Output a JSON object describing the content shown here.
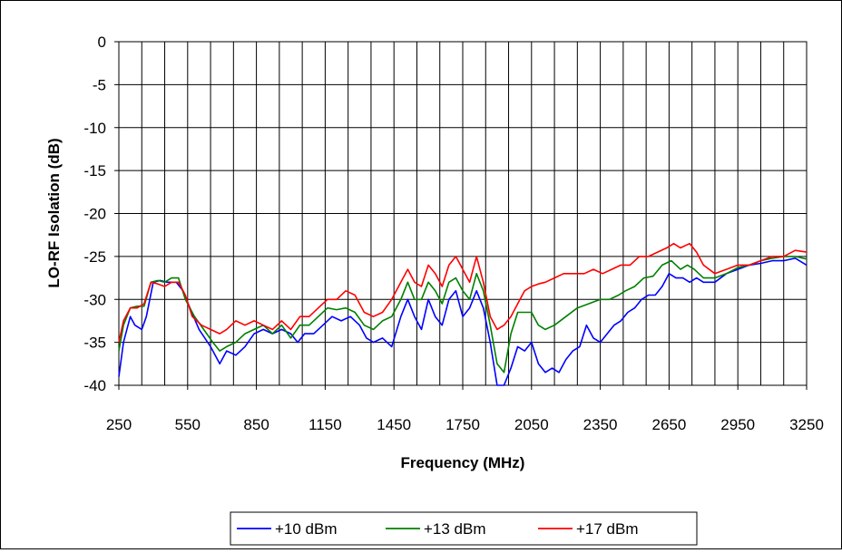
{
  "chart_data": {
    "type": "line",
    "title": "",
    "xlabel": "Frequency (MHz)",
    "ylabel": "LO-RF Isolation (dB)",
    "xlim": [
      250,
      3250
    ],
    "ylim": [
      -40,
      0
    ],
    "x_ticks": [
      "250",
      "550",
      "850",
      "1150",
      "1450",
      "1750",
      "2050",
      "2350",
      "2650",
      "2950",
      "3250"
    ],
    "y_ticks": [
      "0",
      "-5",
      "-10",
      "-15",
      "-20",
      "-25",
      "-30",
      "-35",
      "-40"
    ],
    "grid": true,
    "legend_position": "bottom",
    "series": [
      {
        "name": "+10 dBm",
        "color": "#0000ff",
        "points": [
          [
            250,
            -39
          ],
          [
            270,
            -35
          ],
          [
            300,
            -32
          ],
          [
            320,
            -33
          ],
          [
            350,
            -33.5
          ],
          [
            370,
            -32
          ],
          [
            400,
            -28
          ],
          [
            430,
            -27.8
          ],
          [
            460,
            -28
          ],
          [
            500,
            -28
          ],
          [
            530,
            -29
          ],
          [
            560,
            -31
          ],
          [
            600,
            -33.5
          ],
          [
            650,
            -35.5
          ],
          [
            690,
            -37.5
          ],
          [
            720,
            -36
          ],
          [
            760,
            -36.5
          ],
          [
            800,
            -35.5
          ],
          [
            840,
            -34
          ],
          [
            880,
            -33.5
          ],
          [
            920,
            -34
          ],
          [
            960,
            -33.5
          ],
          [
            1000,
            -34
          ],
          [
            1030,
            -35
          ],
          [
            1060,
            -34
          ],
          [
            1100,
            -34
          ],
          [
            1140,
            -33
          ],
          [
            1180,
            -32
          ],
          [
            1220,
            -32.5
          ],
          [
            1260,
            -32
          ],
          [
            1300,
            -33
          ],
          [
            1330,
            -34.5
          ],
          [
            1360,
            -35
          ],
          [
            1400,
            -34.5
          ],
          [
            1440,
            -35.5
          ],
          [
            1480,
            -32
          ],
          [
            1510,
            -30
          ],
          [
            1540,
            -32
          ],
          [
            1570,
            -33.5
          ],
          [
            1600,
            -30
          ],
          [
            1630,
            -32
          ],
          [
            1660,
            -33
          ],
          [
            1690,
            -30
          ],
          [
            1720,
            -29
          ],
          [
            1750,
            -32
          ],
          [
            1780,
            -31
          ],
          [
            1810,
            -29
          ],
          [
            1840,
            -31
          ],
          [
            1870,
            -35
          ],
          [
            1900,
            -40
          ],
          [
            1930,
            -40.5
          ],
          [
            1960,
            -38
          ],
          [
            1990,
            -35.5
          ],
          [
            2020,
            -36
          ],
          [
            2050,
            -35
          ],
          [
            2080,
            -37.5
          ],
          [
            2110,
            -38.5
          ],
          [
            2140,
            -38
          ],
          [
            2170,
            -38.5
          ],
          [
            2200,
            -37
          ],
          [
            2230,
            -36
          ],
          [
            2260,
            -35.5
          ],
          [
            2290,
            -33
          ],
          [
            2320,
            -34.5
          ],
          [
            2350,
            -35
          ],
          [
            2380,
            -34
          ],
          [
            2410,
            -33
          ],
          [
            2440,
            -32.5
          ],
          [
            2470,
            -31.5
          ],
          [
            2500,
            -31
          ],
          [
            2530,
            -30
          ],
          [
            2560,
            -29.5
          ],
          [
            2590,
            -29.5
          ],
          [
            2620,
            -28.5
          ],
          [
            2650,
            -27
          ],
          [
            2680,
            -27.5
          ],
          [
            2710,
            -27.5
          ],
          [
            2740,
            -28
          ],
          [
            2770,
            -27.5
          ],
          [
            2800,
            -28
          ],
          [
            2850,
            -28
          ],
          [
            2900,
            -27
          ],
          [
            2950,
            -26.5
          ],
          [
            3000,
            -26
          ],
          [
            3050,
            -25.8
          ],
          [
            3100,
            -25.5
          ],
          [
            3150,
            -25.5
          ],
          [
            3200,
            -25.2
          ],
          [
            3250,
            -26
          ]
        ]
      },
      {
        "name": "+13 dBm",
        "color": "#008000",
        "points": [
          [
            250,
            -36
          ],
          [
            270,
            -33
          ],
          [
            300,
            -31
          ],
          [
            330,
            -30.8
          ],
          [
            360,
            -30.8
          ],
          [
            390,
            -28
          ],
          [
            420,
            -27.8
          ],
          [
            450,
            -28
          ],
          [
            480,
            -27.5
          ],
          [
            510,
            -27.5
          ],
          [
            540,
            -30
          ],
          [
            580,
            -32
          ],
          [
            620,
            -33.5
          ],
          [
            660,
            -35
          ],
          [
            690,
            -36
          ],
          [
            720,
            -35.5
          ],
          [
            760,
            -35
          ],
          [
            800,
            -34
          ],
          [
            840,
            -33.5
          ],
          [
            880,
            -33
          ],
          [
            920,
            -34
          ],
          [
            960,
            -33
          ],
          [
            1000,
            -34.5
          ],
          [
            1040,
            -33
          ],
          [
            1080,
            -33
          ],
          [
            1120,
            -32
          ],
          [
            1160,
            -31
          ],
          [
            1200,
            -31.2
          ],
          [
            1240,
            -31
          ],
          [
            1280,
            -31.5
          ],
          [
            1320,
            -33
          ],
          [
            1360,
            -33.5
          ],
          [
            1400,
            -32.5
          ],
          [
            1440,
            -32
          ],
          [
            1480,
            -30
          ],
          [
            1510,
            -28
          ],
          [
            1540,
            -30
          ],
          [
            1570,
            -30
          ],
          [
            1600,
            -28
          ],
          [
            1630,
            -29
          ],
          [
            1660,
            -30.5
          ],
          [
            1690,
            -28
          ],
          [
            1720,
            -27.5
          ],
          [
            1750,
            -29
          ],
          [
            1780,
            -30
          ],
          [
            1810,
            -27
          ],
          [
            1840,
            -29
          ],
          [
            1870,
            -33
          ],
          [
            1900,
            -37.5
          ],
          [
            1930,
            -38.5
          ],
          [
            1960,
            -34
          ],
          [
            1990,
            -31.5
          ],
          [
            2020,
            -31.5
          ],
          [
            2050,
            -31.5
          ],
          [
            2080,
            -33
          ],
          [
            2110,
            -33.5
          ],
          [
            2150,
            -33
          ],
          [
            2200,
            -32
          ],
          [
            2250,
            -31
          ],
          [
            2300,
            -30.5
          ],
          [
            2350,
            -30
          ],
          [
            2390,
            -30
          ],
          [
            2430,
            -29.5
          ],
          [
            2460,
            -29
          ],
          [
            2500,
            -28.5
          ],
          [
            2540,
            -27.5
          ],
          [
            2580,
            -27.3
          ],
          [
            2620,
            -26
          ],
          [
            2660,
            -25.5
          ],
          [
            2700,
            -26.5
          ],
          [
            2730,
            -26
          ],
          [
            2760,
            -26.5
          ],
          [
            2800,
            -27.5
          ],
          [
            2850,
            -27.5
          ],
          [
            2900,
            -27
          ],
          [
            2950,
            -26.3
          ],
          [
            3000,
            -26
          ],
          [
            3050,
            -25.5
          ],
          [
            3100,
            -25.2
          ],
          [
            3150,
            -25
          ],
          [
            3200,
            -25
          ],
          [
            3250,
            -25.3
          ]
        ]
      },
      {
        "name": "+17 dBm",
        "color": "#ff0000",
        "points": [
          [
            250,
            -35
          ],
          [
            270,
            -32.5
          ],
          [
            300,
            -31
          ],
          [
            330,
            -31
          ],
          [
            360,
            -30.5
          ],
          [
            390,
            -28
          ],
          [
            420,
            -28.2
          ],
          [
            450,
            -28.5
          ],
          [
            480,
            -28
          ],
          [
            510,
            -28
          ],
          [
            540,
            -29.5
          ],
          [
            570,
            -32
          ],
          [
            610,
            -33
          ],
          [
            650,
            -33.5
          ],
          [
            690,
            -34
          ],
          [
            720,
            -33.5
          ],
          [
            760,
            -32.5
          ],
          [
            800,
            -33
          ],
          [
            840,
            -32.5
          ],
          [
            880,
            -33
          ],
          [
            920,
            -33.5
          ],
          [
            960,
            -32.5
          ],
          [
            1000,
            -33.5
          ],
          [
            1040,
            -32
          ],
          [
            1080,
            -32
          ],
          [
            1120,
            -31
          ],
          [
            1160,
            -30
          ],
          [
            1200,
            -30
          ],
          [
            1240,
            -29
          ],
          [
            1280,
            -29.5
          ],
          [
            1320,
            -31.5
          ],
          [
            1360,
            -32
          ],
          [
            1400,
            -31.5
          ],
          [
            1440,
            -30
          ],
          [
            1480,
            -28
          ],
          [
            1510,
            -26.5
          ],
          [
            1540,
            -28
          ],
          [
            1570,
            -28.5
          ],
          [
            1600,
            -26
          ],
          [
            1630,
            -27
          ],
          [
            1660,
            -28.5
          ],
          [
            1690,
            -26
          ],
          [
            1720,
            -25
          ],
          [
            1750,
            -26.5
          ],
          [
            1780,
            -28
          ],
          [
            1810,
            -25
          ],
          [
            1840,
            -28
          ],
          [
            1870,
            -32
          ],
          [
            1900,
            -33.5
          ],
          [
            1930,
            -33
          ],
          [
            1960,
            -32
          ],
          [
            1990,
            -30.5
          ],
          [
            2020,
            -29
          ],
          [
            2050,
            -28.5
          ],
          [
            2080,
            -28.2
          ],
          [
            2110,
            -28
          ],
          [
            2150,
            -27.5
          ],
          [
            2190,
            -27
          ],
          [
            2240,
            -27
          ],
          [
            2280,
            -27
          ],
          [
            2320,
            -26.5
          ],
          [
            2360,
            -27
          ],
          [
            2400,
            -26.5
          ],
          [
            2440,
            -26
          ],
          [
            2480,
            -26
          ],
          [
            2520,
            -25
          ],
          [
            2560,
            -25
          ],
          [
            2600,
            -24.5
          ],
          [
            2640,
            -24
          ],
          [
            2670,
            -23.5
          ],
          [
            2700,
            -24
          ],
          [
            2740,
            -23.5
          ],
          [
            2770,
            -24.5
          ],
          [
            2800,
            -26
          ],
          [
            2850,
            -27
          ],
          [
            2900,
            -26.5
          ],
          [
            2950,
            -26
          ],
          [
            3000,
            -26
          ],
          [
            3050,
            -25.5
          ],
          [
            3100,
            -25
          ],
          [
            3150,
            -25
          ],
          [
            3200,
            -24.3
          ],
          [
            3250,
            -24.5
          ]
        ]
      }
    ]
  }
}
